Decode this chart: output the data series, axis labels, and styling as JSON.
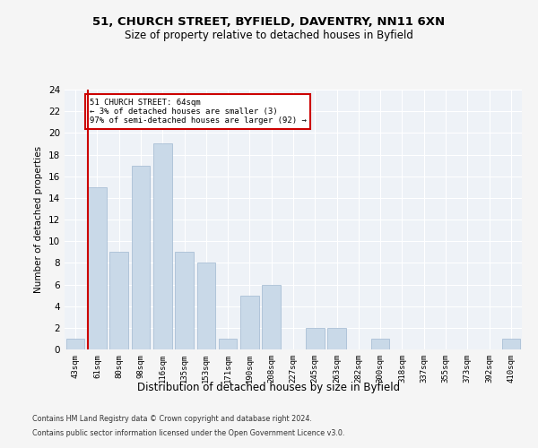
{
  "title1": "51, CHURCH STREET, BYFIELD, DAVENTRY, NN11 6XN",
  "title2": "Size of property relative to detached houses in Byfield",
  "xlabel": "Distribution of detached houses by size in Byfield",
  "ylabel": "Number of detached properties",
  "categories": [
    "43sqm",
    "61sqm",
    "80sqm",
    "98sqm",
    "116sqm",
    "135sqm",
    "153sqm",
    "171sqm",
    "190sqm",
    "208sqm",
    "227sqm",
    "245sqm",
    "263sqm",
    "282sqm",
    "300sqm",
    "318sqm",
    "337sqm",
    "355sqm",
    "373sqm",
    "392sqm",
    "410sqm"
  ],
  "values": [
    1,
    15,
    9,
    17,
    19,
    9,
    8,
    1,
    5,
    6,
    0,
    2,
    2,
    0,
    1,
    0,
    0,
    0,
    0,
    0,
    1
  ],
  "bar_color": "#c9d9e8",
  "bar_edge_color": "#a0b8d0",
  "highlight_idx": 1,
  "highlight_color": "#cc0000",
  "annotation_box_color": "#ffffff",
  "annotation_border_color": "#cc0000",
  "annotation_text_line1": "51 CHURCH STREET: 64sqm",
  "annotation_text_line2": "← 3% of detached houses are smaller (3)",
  "annotation_text_line3": "97% of semi-detached houses are larger (92) →",
  "ylim": [
    0,
    24
  ],
  "yticks": [
    0,
    2,
    4,
    6,
    8,
    10,
    12,
    14,
    16,
    18,
    20,
    22,
    24
  ],
  "footer_line1": "Contains HM Land Registry data © Crown copyright and database right 2024.",
  "footer_line2": "Contains public sector information licensed under the Open Government Licence v3.0.",
  "bg_color": "#eef2f7",
  "fig_bg_color": "#f5f5f5",
  "grid_color": "#ffffff"
}
